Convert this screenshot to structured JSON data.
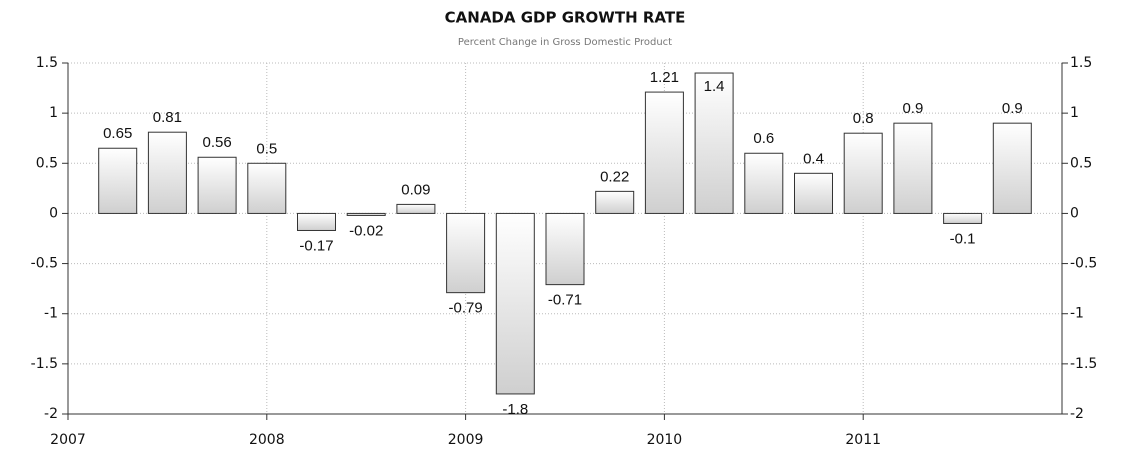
{
  "chart_data": {
    "type": "bar",
    "title": "CANADA GDP GROWTH RATE",
    "subtitle": "Percent Change in Gross Domestic Product",
    "x": [
      2007.25,
      2007.5,
      2007.75,
      2008,
      2008.25,
      2008.5,
      2008.75,
      2009,
      2009.25,
      2009.5,
      2009.75,
      2010,
      2010.25,
      2010.5,
      2010.75,
      2011,
      2011.25,
      2011.5,
      2011.75
    ],
    "values": [
      0.65,
      0.81,
      0.56,
      0.5,
      -0.17,
      -0.02,
      0.09,
      -0.79,
      -1.8,
      -0.71,
      0.22,
      1.21,
      1.4,
      0.6,
      0.4,
      0.8,
      0.9,
      -0.1,
      0.9
    ],
    "color": "#cfcfcf",
    "xlim": [
      2007,
      2012
    ],
    "xticks": [
      2007,
      2008,
      2009,
      2010,
      2011
    ],
    "ylim": [
      -2,
      1.5
    ],
    "yticks": [
      -2,
      -1.5,
      -1,
      -0.5,
      0,
      0.5,
      1,
      1.5
    ],
    "y2lim": [
      -2,
      1.5
    ],
    "y2ticks": [
      -2,
      -1.5,
      -1,
      -0.5,
      0,
      0.5,
      1,
      1.5
    ],
    "grid": true
  }
}
